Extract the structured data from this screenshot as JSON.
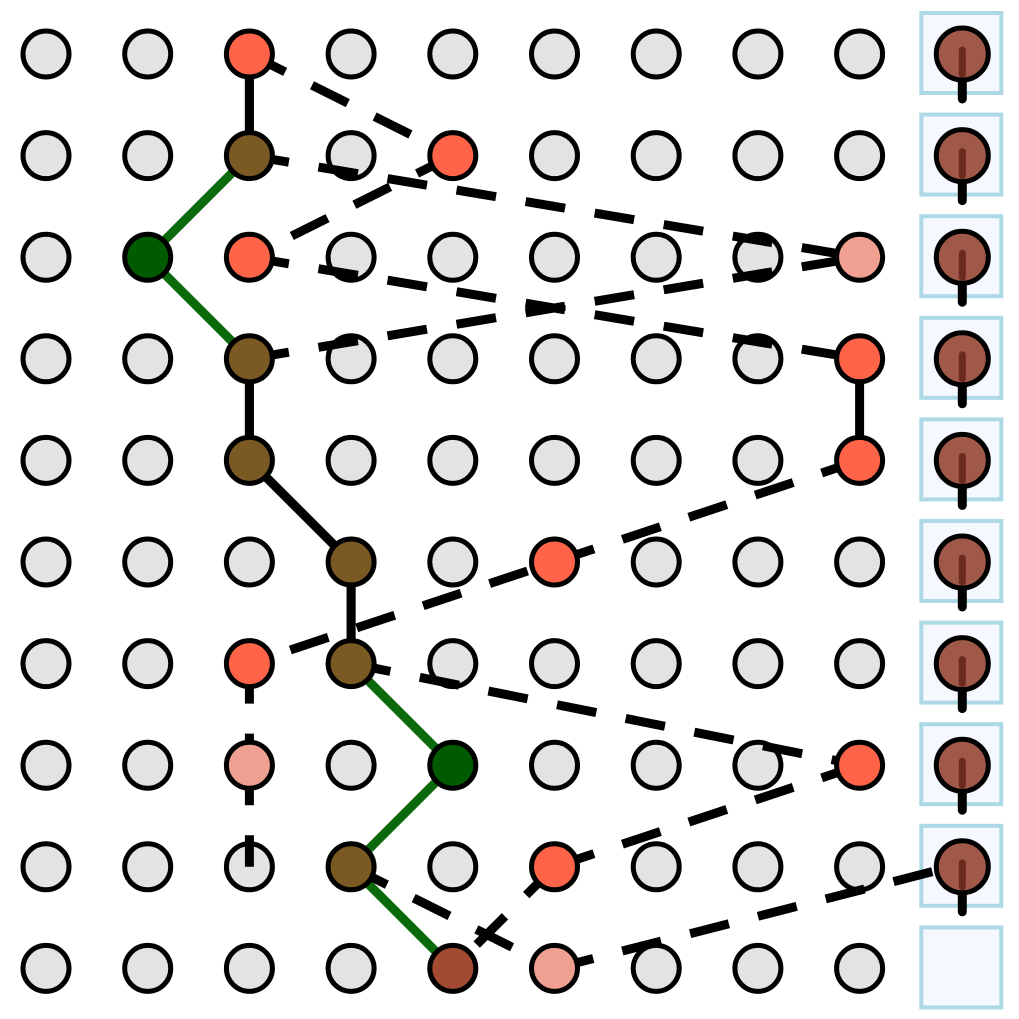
{
  "board": {
    "rows": 10,
    "cols": 10,
    "colors": {
      "empty_fill": "#e3e3e3",
      "stroke": "#000000",
      "green_path": "#0b6a0b",
      "green_node": "#005a00",
      "olive_node": "#7a5a22",
      "orange_node": "#ff6448",
      "pink_node": "#f0a090",
      "dark_red_node": "#a24a32",
      "brown_node": "#a05848",
      "brown_tick": "#6b2a1e",
      "sidebar_fill": "#f5f9ff",
      "sidebar_border": "#add8e6",
      "dashed_line": "#000000"
    },
    "sidebar_items": [
      {
        "index": 0,
        "state": "filled"
      },
      {
        "index": 1,
        "state": "filled"
      },
      {
        "index": 2,
        "state": "filled"
      },
      {
        "index": 3,
        "state": "filled"
      },
      {
        "index": 4,
        "state": "filled"
      },
      {
        "index": 5,
        "state": "filled"
      },
      {
        "index": 6,
        "state": "filled"
      },
      {
        "index": 7,
        "state": "filled"
      },
      {
        "index": 8,
        "state": "filled"
      },
      {
        "index": 9,
        "state": "empty"
      }
    ],
    "special_nodes": [
      {
        "row": 0,
        "col": 2,
        "kind": "orange"
      },
      {
        "row": 1,
        "col": 2,
        "kind": "olive"
      },
      {
        "row": 1,
        "col": 4,
        "kind": "orange"
      },
      {
        "row": 2,
        "col": 1,
        "kind": "green"
      },
      {
        "row": 2,
        "col": 2,
        "kind": "orange"
      },
      {
        "row": 2,
        "col": 8,
        "kind": "pink"
      },
      {
        "row": 3,
        "col": 2,
        "kind": "olive"
      },
      {
        "row": 3,
        "col": 8,
        "kind": "orange"
      },
      {
        "row": 4,
        "col": 2,
        "kind": "olive"
      },
      {
        "row": 4,
        "col": 8,
        "kind": "orange"
      },
      {
        "row": 5,
        "col": 3,
        "kind": "olive"
      },
      {
        "row": 5,
        "col": 5,
        "kind": "orange"
      },
      {
        "row": 6,
        "col": 2,
        "kind": "orange"
      },
      {
        "row": 6,
        "col": 3,
        "kind": "olive"
      },
      {
        "row": 7,
        "col": 2,
        "kind": "pink"
      },
      {
        "row": 7,
        "col": 4,
        "kind": "green"
      },
      {
        "row": 7,
        "col": 8,
        "kind": "orange"
      },
      {
        "row": 8,
        "col": 3,
        "kind": "olive"
      },
      {
        "row": 8,
        "col": 5,
        "kind": "orange"
      },
      {
        "row": 9,
        "col": 4,
        "kind": "dark_red"
      },
      {
        "row": 9,
        "col": 5,
        "kind": "pink"
      }
    ],
    "green_path": [
      [
        0,
        2
      ],
      [
        1,
        2
      ],
      [
        2,
        1
      ],
      [
        3,
        2
      ],
      [
        4,
        2
      ],
      [
        5,
        3
      ],
      [
        6,
        3
      ],
      [
        7,
        4
      ],
      [
        8,
        3
      ],
      [
        9,
        4
      ]
    ],
    "solid_links": [
      [
        [
          0,
          2
        ],
        [
          1,
          2
        ]
      ],
      [
        [
          3,
          2
        ],
        [
          4,
          2
        ]
      ],
      [
        [
          3,
          8
        ],
        [
          4,
          8
        ]
      ],
      [
        [
          4,
          2
        ],
        [
          5,
          3
        ]
      ],
      [
        [
          5,
          3
        ],
        [
          6,
          3
        ]
      ]
    ],
    "dashed_links": [
      [
        [
          0,
          2
        ],
        [
          1,
          4
        ]
      ],
      [
        [
          1,
          2
        ],
        [
          2,
          8
        ]
      ],
      [
        [
          1,
          4
        ],
        [
          2,
          2
        ]
      ],
      [
        [
          2,
          2
        ],
        [
          3,
          8
        ]
      ],
      [
        [
          3,
          2
        ],
        [
          2,
          8
        ]
      ],
      [
        [
          4,
          8
        ],
        [
          6,
          2
        ]
      ],
      [
        [
          6,
          3
        ],
        [
          7,
          8
        ]
      ],
      [
        [
          6,
          2
        ],
        [
          7,
          2
        ]
      ],
      [
        [
          7,
          2
        ],
        [
          8,
          2
        ]
      ],
      [
        [
          8,
          5
        ],
        [
          9,
          4
        ]
      ],
      [
        [
          7,
          8
        ],
        [
          8,
          5
        ]
      ],
      [
        [
          8,
          3
        ],
        [
          9,
          5
        ]
      ],
      [
        [
          9,
          5
        ],
        [
          8,
          9
        ]
      ]
    ]
  }
}
